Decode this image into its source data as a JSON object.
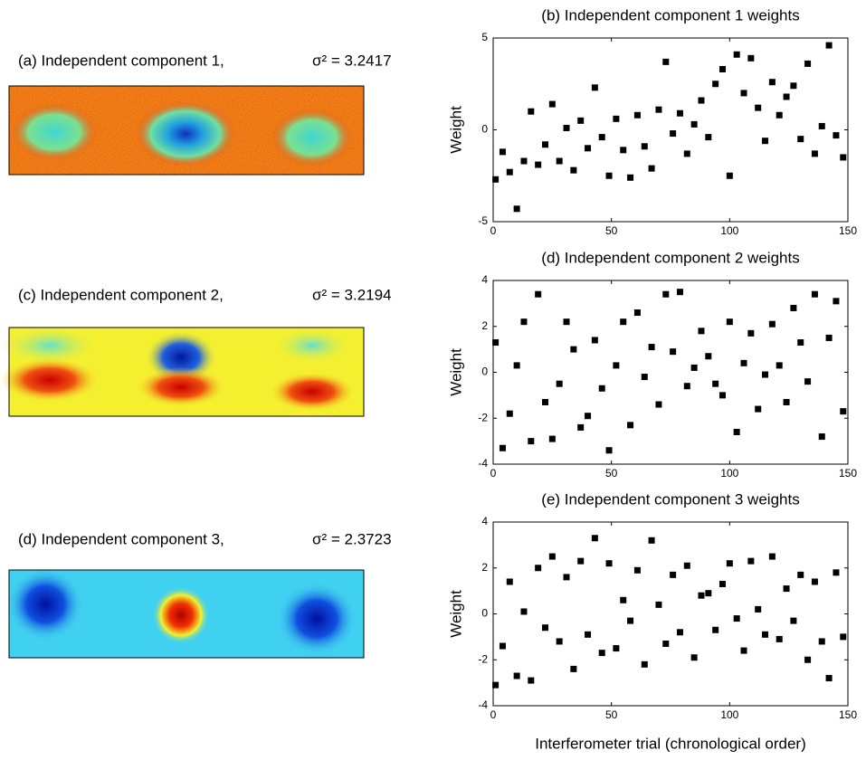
{
  "images": [
    {
      "title": "(a) Independent component 1,",
      "variance": "σ² = 3.2417"
    },
    {
      "title": "(c) Independent component 2,",
      "variance": "σ² = 3.2194"
    },
    {
      "title": "(d) Independent component 3,",
      "variance": "σ² = 2.3723"
    }
  ],
  "chart_data": [
    {
      "type": "scatter",
      "title": "(b) Independent component 1 weights",
      "ylabel": "Weight",
      "color": "#000000",
      "x": [
        1,
        4,
        7,
        10,
        13,
        16,
        19,
        22,
        25,
        28,
        31,
        34,
        37,
        40,
        43,
        46,
        49,
        52,
        55,
        58,
        61,
        64,
        67,
        70,
        73,
        76,
        79,
        82,
        85,
        88,
        91,
        94,
        97,
        100,
        103,
        106,
        109,
        112,
        115,
        118,
        121,
        124,
        127,
        130,
        133,
        136,
        139,
        142,
        145,
        148
      ],
      "values": [
        -2.7,
        -1.2,
        -2.3,
        -4.3,
        -1.7,
        1,
        -1.9,
        -0.8,
        1.4,
        -1.7,
        0.1,
        -2.2,
        0.5,
        -1.0,
        2.3,
        -0.4,
        -2.5,
        0.6,
        -1.1,
        -2.6,
        0.8,
        -0.9,
        -2.1,
        1.1,
        3.7,
        -0.2,
        0.9,
        -1.3,
        0.3,
        1.6,
        -0.4,
        2.5,
        3.3,
        -2.5,
        4.1,
        2.0,
        3.9,
        1.2,
        -0.6,
        2.6,
        0.8,
        1.8,
        2.4,
        -0.5,
        3.6,
        -1.3,
        0.2,
        4.6,
        -0.3,
        -1.5
      ],
      "xlim": [
        0,
        150
      ],
      "xticks": [
        0,
        50,
        100,
        150
      ],
      "ylim": [
        -5,
        5
      ],
      "yticks": [
        -5,
        0,
        5
      ]
    },
    {
      "type": "scatter",
      "title": "(d) Independent component 2 weights",
      "ylabel": "Weight",
      "color": "#000000",
      "x": [
        1,
        4,
        7,
        10,
        13,
        16,
        19,
        22,
        25,
        28,
        31,
        34,
        37,
        40,
        43,
        46,
        49,
        52,
        55,
        58,
        61,
        64,
        67,
        70,
        73,
        76,
        79,
        82,
        85,
        88,
        91,
        94,
        97,
        100,
        103,
        106,
        109,
        112,
        115,
        118,
        121,
        124,
        127,
        130,
        133,
        136,
        139,
        142,
        145,
        148
      ],
      "values": [
        1.3,
        -3.3,
        -1.8,
        0.3,
        2.2,
        -3.0,
        3.4,
        -1.3,
        -2.9,
        -0.5,
        2.2,
        1.0,
        -2.4,
        -1.9,
        1.4,
        -0.7,
        -3.4,
        0.3,
        2.2,
        -2.3,
        2.6,
        -0.2,
        1.1,
        -1.4,
        3.4,
        0.9,
        3.5,
        -0.6,
        0.2,
        1.8,
        0.7,
        -0.5,
        -1.0,
        2.2,
        -2.6,
        0.4,
        1.7,
        -1.6,
        -0.1,
        2.1,
        0.3,
        -1.3,
        2.8,
        1.3,
        -0.4,
        3.4,
        -2.8,
        1.5,
        3.1,
        -1.7
      ],
      "xlim": [
        0,
        150
      ],
      "xticks": [
        0,
        50,
        100,
        150
      ],
      "ylim": [
        -4,
        4
      ],
      "yticks": [
        -4,
        -2,
        0,
        2,
        4
      ]
    },
    {
      "type": "scatter",
      "title": "(e) Independent component 3 weights",
      "ylabel": "Weight",
      "xlabel": "Interferometer trial (chronological order)",
      "color": "#000000",
      "x": [
        1,
        4,
        7,
        10,
        13,
        16,
        19,
        22,
        25,
        28,
        31,
        34,
        37,
        40,
        43,
        46,
        49,
        52,
        55,
        58,
        61,
        64,
        67,
        70,
        73,
        76,
        79,
        82,
        85,
        88,
        91,
        94,
        97,
        100,
        103,
        106,
        109,
        112,
        115,
        118,
        121,
        124,
        127,
        130,
        133,
        136,
        139,
        142,
        145,
        148
      ],
      "values": [
        -3.1,
        -1.4,
        1.4,
        -2.7,
        0.1,
        -2.9,
        2.0,
        -0.6,
        2.5,
        -1.2,
        1.6,
        -2.4,
        2.3,
        -0.9,
        3.3,
        -1.7,
        2.2,
        -1.5,
        0.6,
        -0.3,
        1.9,
        -2.2,
        3.2,
        0.4,
        -1.3,
        1.7,
        -0.8,
        2.1,
        -1.9,
        0.8,
        0.9,
        -0.7,
        1.3,
        2.2,
        -0.2,
        -1.6,
        2.3,
        0.2,
        -0.9,
        2.5,
        -1.1,
        1.1,
        -0.3,
        1.7,
        -2.0,
        1.4,
        -1.2,
        -2.8,
        1.8,
        -1.0
      ],
      "xlim": [
        0,
        150
      ],
      "xticks": [
        0,
        50,
        100,
        150
      ],
      "ylim": [
        -4,
        4
      ],
      "yticks": [
        -4,
        -2,
        0,
        2,
        4
      ]
    }
  ]
}
